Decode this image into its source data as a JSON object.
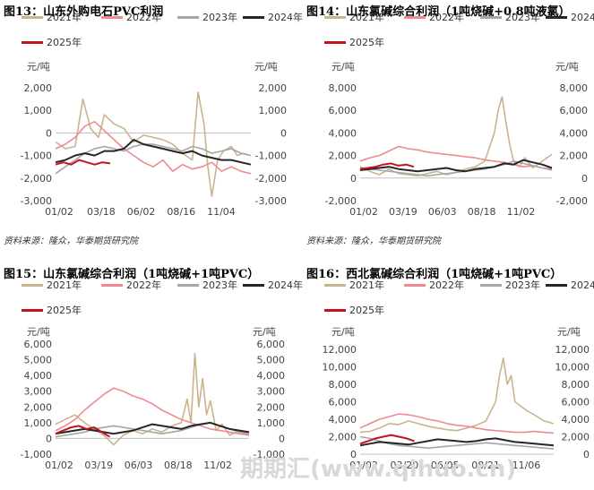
{
  "watermark": "期期汇(www.qihuo.cn)",
  "source_note": "资料来源：隆众，华泰期货研究院",
  "colors": {
    "2021年": "#c9b48f",
    "2022年": "#ef8a90",
    "2023年": "#a6a6a6",
    "2024年": "#262626",
    "2025年": "#c0141e"
  },
  "chart_data": [
    {
      "type": "line",
      "title": "图13：山东外购电石PVC利润",
      "unit_left": "元/吨",
      "unit_right": "元/吨",
      "ylim": [
        -3000,
        2000
      ],
      "y_ticks": [
        "2,000",
        "1,000",
        "0",
        "-1,000",
        "-2,000",
        "-3,000"
      ],
      "y_tick_values": [
        2000,
        1000,
        0,
        -1000,
        -2000,
        -3000
      ],
      "x_ticks": [
        "01/02",
        "03/18",
        "06/02",
        "08/16",
        "11/04"
      ],
      "x_tick_pos": [
        0,
        0.215,
        0.42,
        0.625,
        0.83
      ],
      "legend": [
        "2021年",
        "2022年",
        "2023年",
        "2024年",
        "2025年"
      ],
      "series": [
        {
          "name": "2021年",
          "x": [
            0,
            0.05,
            0.1,
            0.14,
            0.18,
            0.22,
            0.25,
            0.3,
            0.35,
            0.4,
            0.45,
            0.5,
            0.55,
            0.6,
            0.65,
            0.7,
            0.73,
            0.76,
            0.78,
            0.8,
            0.83,
            0.86,
            0.9,
            0.93,
            0.96,
            1
          ],
          "y": [
            -400,
            -700,
            -600,
            1500,
            200,
            -200,
            800,
            400,
            200,
            -400,
            -100,
            -200,
            -300,
            -500,
            -900,
            -1200,
            1800,
            400,
            -1500,
            -2800,
            -1200,
            -800,
            -600,
            -1000,
            -900,
            -1000
          ]
        },
        {
          "name": "2022年",
          "x": [
            0,
            0.05,
            0.1,
            0.15,
            0.2,
            0.25,
            0.3,
            0.35,
            0.4,
            0.45,
            0.5,
            0.55,
            0.6,
            0.65,
            0.7,
            0.75,
            0.8,
            0.85,
            0.9,
            0.95,
            1
          ],
          "y": [
            -700,
            -500,
            -200,
            300,
            500,
            100,
            -300,
            -700,
            -1000,
            -1300,
            -1500,
            -1200,
            -1700,
            -1400,
            -1600,
            -1500,
            -1300,
            -1700,
            -1500,
            -1700,
            -1800
          ]
        },
        {
          "name": "2023年",
          "x": [
            0,
            0.05,
            0.1,
            0.15,
            0.2,
            0.25,
            0.3,
            0.35,
            0.4,
            0.45,
            0.5,
            0.55,
            0.6,
            0.65,
            0.7,
            0.75,
            0.8,
            0.85,
            0.9,
            0.95,
            1
          ],
          "y": [
            -1800,
            -1500,
            -1200,
            -900,
            -700,
            -600,
            -700,
            -800,
            -600,
            -500,
            -500,
            -600,
            -700,
            -800,
            -600,
            -700,
            -900,
            -800,
            -700,
            -900,
            -1000
          ]
        },
        {
          "name": "2024年",
          "x": [
            0,
            0.05,
            0.1,
            0.15,
            0.2,
            0.25,
            0.3,
            0.35,
            0.4,
            0.45,
            0.5,
            0.55,
            0.6,
            0.65,
            0.7,
            0.75,
            0.8,
            0.85,
            0.9,
            0.95,
            1
          ],
          "y": [
            -1300,
            -1200,
            -1000,
            -900,
            -1000,
            -800,
            -800,
            -700,
            -300,
            -500,
            -600,
            -700,
            -800,
            -900,
            -800,
            -1000,
            -1100,
            -1200,
            -1200,
            -1300,
            -1400
          ]
        },
        {
          "name": "2025年",
          "x": [
            0,
            0.04,
            0.08,
            0.12,
            0.16,
            0.2,
            0.24,
            0.28
          ],
          "y": [
            -1400,
            -1300,
            -1400,
            -1200,
            -1300,
            -1400,
            -1300,
            -1350
          ]
        }
      ]
    },
    {
      "type": "line",
      "title": "图14：山东氯碱综合利润（1吨烧碱+0.8吨液氯）",
      "unit_left": "元/吨",
      "unit_right": "元/吨",
      "ylim": [
        -2000,
        8000
      ],
      "y_ticks": [
        "8,000",
        "6,000",
        "4,000",
        "2,000",
        "0",
        "-2,000"
      ],
      "y_tick_values": [
        8000,
        6000,
        4000,
        2000,
        0,
        -2000
      ],
      "x_ticks": [
        "01/02",
        "03/19",
        "06/03",
        "08/18",
        "11/02"
      ],
      "x_tick_pos": [
        0,
        0.205,
        0.41,
        0.615,
        0.82
      ],
      "legend": [
        "2021年",
        "2022年",
        "2023年",
        "2024年",
        "2025年"
      ],
      "series": [
        {
          "name": "2021年",
          "x": [
            0,
            0.05,
            0.1,
            0.15,
            0.2,
            0.25,
            0.3,
            0.35,
            0.4,
            0.45,
            0.5,
            0.55,
            0.6,
            0.65,
            0.7,
            0.72,
            0.74,
            0.76,
            0.78,
            0.8,
            0.83,
            0.86,
            0.9,
            0.95,
            1
          ],
          "y": [
            1000,
            600,
            300,
            800,
            400,
            300,
            200,
            400,
            600,
            300,
            500,
            800,
            1000,
            1500,
            4000,
            6000,
            7200,
            5000,
            3000,
            1500,
            1000,
            1800,
            900,
            1500,
            2100
          ]
        },
        {
          "name": "2022年",
          "x": [
            0,
            0.05,
            0.1,
            0.15,
            0.2,
            0.25,
            0.3,
            0.35,
            0.4,
            0.45,
            0.5,
            0.55,
            0.6,
            0.65,
            0.7,
            0.75,
            0.8,
            0.85,
            0.9,
            0.95,
            1
          ],
          "y": [
            1500,
            1800,
            2000,
            2400,
            2800,
            2600,
            2500,
            2300,
            2200,
            2100,
            2000,
            1900,
            1800,
            1600,
            1500,
            1400,
            1200,
            1000,
            1100,
            900,
            800
          ]
        },
        {
          "name": "2023年",
          "x": [
            0,
            0.05,
            0.1,
            0.15,
            0.2,
            0.25,
            0.3,
            0.35,
            0.4,
            0.45,
            0.5,
            0.55,
            0.6,
            0.65,
            0.7,
            0.75,
            0.8,
            0.85,
            0.9,
            0.95,
            1
          ],
          "y": [
            900,
            800,
            700,
            600,
            500,
            400,
            300,
            200,
            300,
            400,
            500,
            600,
            700,
            800,
            1000,
            1200,
            1500,
            1300,
            1100,
            900,
            700
          ]
        },
        {
          "name": "2024年",
          "x": [
            0,
            0.05,
            0.1,
            0.15,
            0.2,
            0.25,
            0.3,
            0.35,
            0.4,
            0.45,
            0.5,
            0.55,
            0.6,
            0.65,
            0.7,
            0.75,
            0.8,
            0.85,
            0.9,
            0.95,
            1
          ],
          "y": [
            700,
            800,
            900,
            1000,
            800,
            700,
            600,
            700,
            800,
            900,
            700,
            600,
            800,
            900,
            1000,
            1300,
            1200,
            1600,
            1400,
            1200,
            900
          ]
        },
        {
          "name": "2025年",
          "x": [
            0,
            0.04,
            0.08,
            0.12,
            0.16,
            0.2,
            0.24,
            0.28
          ],
          "y": [
            800,
            900,
            1000,
            1200,
            1300,
            1100,
            1200,
            1000
          ]
        }
      ]
    },
    {
      "type": "line",
      "title": "图15：山东氯碱综合利润（1吨烧碱+1吨PVC）",
      "unit_left": "元/吨",
      "unit_right": "元/吨",
      "ylim": [
        -1000,
        6000
      ],
      "y_ticks": [
        "6,000",
        "5,000",
        "4,000",
        "3,000",
        "2,000",
        "1,000",
        "0",
        "-1,000"
      ],
      "y_tick_values": [
        6000,
        5000,
        4000,
        3000,
        2000,
        1000,
        0,
        -1000
      ],
      "x_ticks": [
        "01/02",
        "03/19",
        "06/03",
        "08/18",
        "11/02"
      ],
      "x_tick_pos": [
        0,
        0.205,
        0.41,
        0.615,
        0.82
      ],
      "legend": [
        "2021年",
        "2022年",
        "2023年",
        "2024年",
        "2025年"
      ],
      "series": [
        {
          "name": "2021年",
          "x": [
            0,
            0.05,
            0.1,
            0.15,
            0.2,
            0.25,
            0.3,
            0.35,
            0.4,
            0.45,
            0.5,
            0.55,
            0.6,
            0.65,
            0.68,
            0.7,
            0.72,
            0.74,
            0.76,
            0.78,
            0.8,
            0.83,
            0.86,
            0.9,
            0.95,
            1
          ],
          "y": [
            900,
            1200,
            1500,
            1000,
            600,
            200,
            -400,
            200,
            500,
            300,
            600,
            400,
            800,
            1000,
            2500,
            1000,
            5400,
            2000,
            3800,
            1500,
            2400,
            500,
            900,
            200,
            500,
            200
          ]
        },
        {
          "name": "2022年",
          "x": [
            0,
            0.05,
            0.1,
            0.15,
            0.2,
            0.25,
            0.3,
            0.35,
            0.4,
            0.45,
            0.5,
            0.55,
            0.6,
            0.65,
            0.7,
            0.75,
            0.8,
            0.85,
            0.9,
            0.95,
            1
          ],
          "y": [
            500,
            800,
            1200,
            1800,
            2300,
            2800,
            3200,
            3000,
            2700,
            2500,
            2200,
            1800,
            1500,
            1200,
            1000,
            800,
            600,
            500,
            400,
            300,
            200
          ]
        },
        {
          "name": "2023年",
          "x": [
            0,
            0.05,
            0.1,
            0.15,
            0.2,
            0.25,
            0.3,
            0.35,
            0.4,
            0.45,
            0.5,
            0.55,
            0.6,
            0.65,
            0.7,
            0.75,
            0.8,
            0.85,
            0.9,
            0.95,
            1
          ],
          "y": [
            100,
            200,
            300,
            400,
            600,
            700,
            800,
            700,
            600,
            500,
            400,
            300,
            400,
            500,
            700,
            900,
            1000,
            800,
            600,
            400,
            300
          ]
        },
        {
          "name": "2024年",
          "x": [
            0,
            0.05,
            0.1,
            0.15,
            0.2,
            0.25,
            0.3,
            0.35,
            0.4,
            0.45,
            0.5,
            0.55,
            0.6,
            0.65,
            0.7,
            0.75,
            0.8,
            0.85,
            0.9,
            0.95,
            1
          ],
          "y": [
            300,
            400,
            500,
            600,
            500,
            400,
            300,
            400,
            500,
            700,
            900,
            800,
            700,
            600,
            800,
            900,
            1000,
            800,
            600,
            500,
            400
          ]
        },
        {
          "name": "2025年",
          "x": [
            0,
            0.04,
            0.08,
            0.12,
            0.16,
            0.2,
            0.24,
            0.28
          ],
          "y": [
            300,
            500,
            700,
            800,
            600,
            700,
            400,
            100
          ]
        }
      ]
    },
    {
      "type": "line",
      "title": "图16：西北氯碱综合利润（1吨烧碱+1吨PVC）",
      "unit_left": "元/吨",
      "unit_right": "元/吨",
      "ylim": [
        0,
        12000
      ],
      "y_ticks": [
        "12,000",
        "10,000",
        "8,000",
        "6,000",
        "4,000",
        "2,000",
        "0"
      ],
      "y_tick_values": [
        12000,
        10000,
        8000,
        6000,
        4000,
        2000,
        0
      ],
      "x_ticks": [
        "01/02",
        "03/20",
        "06/05",
        "08/21",
        "11/06"
      ],
      "x_tick_pos": [
        0,
        0.21,
        0.42,
        0.63,
        0.84
      ],
      "legend": [
        "2021年",
        "2022年",
        "2023年",
        "2024年",
        "2025年"
      ],
      "series": [
        {
          "name": "2021年",
          "x": [
            0,
            0.05,
            0.1,
            0.15,
            0.2,
            0.25,
            0.3,
            0.35,
            0.4,
            0.45,
            0.5,
            0.55,
            0.6,
            0.65,
            0.7,
            0.72,
            0.74,
            0.76,
            0.78,
            0.8,
            0.83,
            0.86,
            0.9,
            0.95,
            1
          ],
          "y": [
            2500,
            2600,
            3000,
            3500,
            3400,
            3800,
            3500,
            3200,
            3000,
            2800,
            2700,
            3000,
            3300,
            3800,
            6000,
            9000,
            11000,
            8000,
            9000,
            6000,
            5500,
            5000,
            4500,
            3800,
            3500
          ]
        },
        {
          "name": "2022年",
          "x": [
            0,
            0.05,
            0.1,
            0.15,
            0.2,
            0.25,
            0.3,
            0.35,
            0.4,
            0.45,
            0.5,
            0.55,
            0.6,
            0.65,
            0.7,
            0.75,
            0.8,
            0.85,
            0.9,
            0.95,
            1
          ],
          "y": [
            3000,
            3500,
            4000,
            4300,
            4600,
            4500,
            4300,
            4000,
            3800,
            3500,
            3300,
            3200,
            3000,
            2800,
            2700,
            2600,
            2500,
            2500,
            2600,
            2500,
            2400
          ]
        },
        {
          "name": "2023年",
          "x": [
            0,
            0.05,
            0.1,
            0.15,
            0.2,
            0.25,
            0.3,
            0.35,
            0.4,
            0.45,
            0.5,
            0.55,
            0.6,
            0.65,
            0.7,
            0.75,
            0.8,
            0.85,
            0.9,
            0.95,
            1
          ],
          "y": [
            2000,
            1800,
            1500,
            1200,
            1000,
            900,
            800,
            700,
            800,
            900,
            1000,
            1100,
            1200,
            1300,
            1200,
            1100,
            1000,
            900,
            800,
            700,
            600
          ]
        },
        {
          "name": "2024年",
          "x": [
            0,
            0.05,
            0.1,
            0.15,
            0.2,
            0.25,
            0.3,
            0.35,
            0.4,
            0.45,
            0.5,
            0.55,
            0.6,
            0.65,
            0.7,
            0.75,
            0.8,
            0.85,
            0.9,
            0.95,
            1
          ],
          "y": [
            1000,
            1200,
            1400,
            1300,
            1200,
            1100,
            1300,
            1500,
            1700,
            1600,
            1500,
            1400,
            1500,
            1700,
            1800,
            1600,
            1400,
            1300,
            1200,
            1100,
            1000
          ]
        },
        {
          "name": "2025年",
          "x": [
            0,
            0.04,
            0.08,
            0.12,
            0.16,
            0.2,
            0.24,
            0.28
          ],
          "y": [
            1200,
            1500,
            1800,
            2000,
            2200,
            2000,
            1800,
            1500
          ]
        }
      ]
    }
  ]
}
